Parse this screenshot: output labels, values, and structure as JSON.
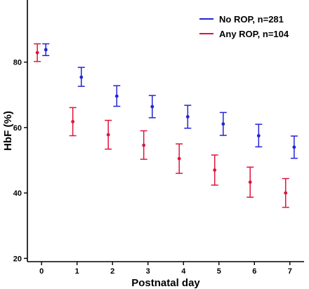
{
  "chart_data": {
    "type": "scatter",
    "xlabel": "Postnatal day",
    "ylabel": "HbF (%)",
    "x_ticks": [
      0,
      1,
      2,
      3,
      4,
      5,
      6,
      7
    ],
    "y_ticks": [
      20,
      40,
      60,
      80
    ],
    "xlim": [
      -0.4,
      7.4
    ],
    "ylim": [
      19,
      99
    ],
    "grid": false,
    "legend_position": "top-right",
    "series": [
      {
        "name": "No ROP, n=281",
        "color": "#2323d6",
        "x": [
          0,
          1,
          2,
          3,
          4,
          5,
          6,
          7
        ],
        "y": [
          83.8,
          75.4,
          69.6,
          66.4,
          63.3,
          61.1,
          57.5,
          54.0
        ],
        "y_low": [
          82.0,
          72.6,
          66.5,
          63.0,
          59.8,
          57.6,
          54.1,
          50.6
        ],
        "y_high": [
          85.6,
          78.4,
          72.8,
          69.8,
          66.8,
          64.6,
          61.0,
          57.4
        ]
      },
      {
        "name": "Any ROP, n=104",
        "color": "#e0143c",
        "x": [
          0,
          1,
          2,
          3,
          4,
          5,
          6,
          7
        ],
        "y": [
          82.9,
          61.8,
          57.8,
          54.6,
          50.5,
          47.0,
          43.3,
          40.0
        ],
        "y_low": [
          80.2,
          57.5,
          53.4,
          50.3,
          46.0,
          42.4,
          38.7,
          35.6
        ],
        "y_high": [
          85.6,
          66.1,
          62.2,
          59.0,
          55.0,
          51.6,
          47.9,
          44.4
        ]
      }
    ]
  }
}
